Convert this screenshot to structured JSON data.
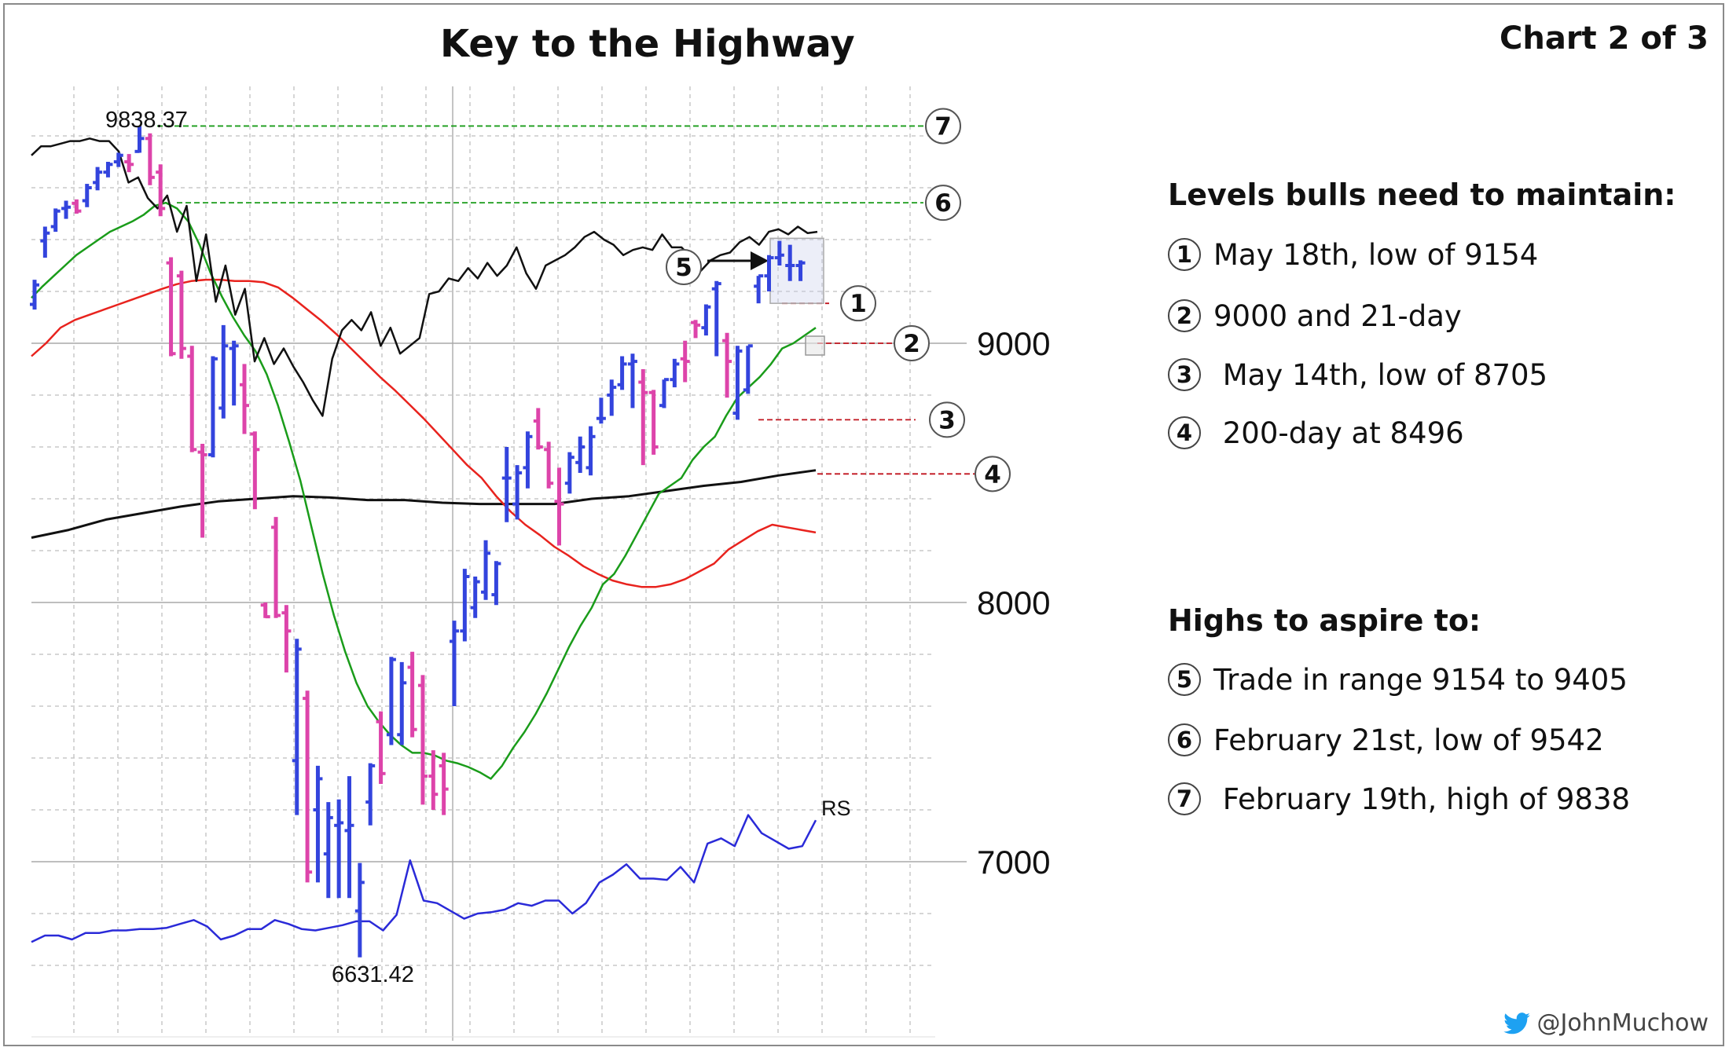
{
  "title": "Key to the Highway",
  "chart_label": "Chart 2 of 3",
  "handle": "@JohnMuchow",
  "colors": {
    "up_bar": "#3344dd",
    "down_bar": "#dd44aa",
    "ma21": "#1a9c1a",
    "ma50": "#e8231e",
    "ma200": "#111111",
    "rs": "#2a2ad8",
    "level_green": "#1a9c1a",
    "level_red": "#c0141e",
    "twitter": "#1da1f2"
  },
  "panel": {
    "bull_levels_heading": "Levels bulls need to maintain:",
    "bull_levels": [
      {
        "num": "1",
        "text": "May 18th, low of 9154"
      },
      {
        "num": "2",
        "text": "9000 and 21-day"
      },
      {
        "num": "3",
        "text": " May 14th, low of 8705"
      },
      {
        "num": "4",
        "text": " 200-day at 8496"
      }
    ],
    "highs_heading": "Highs to aspire to:",
    "highs": [
      {
        "num": "5",
        "text": "Trade in range 9154 to 9405"
      },
      {
        "num": "6",
        "text": "February 21st, low of 9542"
      },
      {
        "num": "7",
        "text": " February 19th, high of 9838"
      }
    ]
  },
  "chart_data": {
    "type": "ohlc",
    "y_axis_ticks": [
      9000,
      8000,
      7000
    ],
    "ylim": [
      6450,
      9950
    ],
    "annotations": {
      "high_label": "9838.37",
      "low_label": "6631.42",
      "rs_label": "RS"
    },
    "levels": [
      {
        "num": "7",
        "value": 9838,
        "style": "green"
      },
      {
        "num": "6",
        "value": 9542,
        "style": "green"
      },
      {
        "num": "1",
        "value": 9154,
        "style": "red"
      },
      {
        "num": "2",
        "value": 9000,
        "style": "red"
      },
      {
        "num": "3",
        "value": 8705,
        "style": "red"
      },
      {
        "num": "4",
        "value": 8496,
        "style": "red"
      }
    ],
    "range_box": {
      "num": "5",
      "low": 9154,
      "high": 9405
    },
    "bars": [
      {
        "o": 9150,
        "h": 9245,
        "l": 9130,
        "c": 9225
      },
      {
        "o": 9395,
        "h": 9450,
        "l": 9330,
        "c": 9425
      },
      {
        "o": 9450,
        "h": 9520,
        "l": 9430,
        "c": 9510
      },
      {
        "o": 9520,
        "h": 9550,
        "l": 9480,
        "c": 9525
      },
      {
        "o": 9540,
        "h": 9555,
        "l": 9500,
        "c": 9510
      },
      {
        "o": 9550,
        "h": 9615,
        "l": 9525,
        "c": 9600
      },
      {
        "o": 9620,
        "h": 9680,
        "l": 9590,
        "c": 9660
      },
      {
        "o": 9660,
        "h": 9700,
        "l": 9640,
        "c": 9690
      },
      {
        "o": 9700,
        "h": 9735,
        "l": 9680,
        "c": 9725
      },
      {
        "o": 9700,
        "h": 9730,
        "l": 9660,
        "c": 9690
      },
      {
        "o": 9740,
        "h": 9838,
        "l": 9735,
        "c": 9790
      },
      {
        "o": 9790,
        "h": 9810,
        "l": 9610,
        "c": 9640
      },
      {
        "o": 9660,
        "h": 9690,
        "l": 9490,
        "c": 9520
      },
      {
        "o": 9310,
        "h": 9332,
        "l": 8950,
        "c": 8960
      },
      {
        "o": 9260,
        "h": 9280,
        "l": 8940,
        "c": 8980
      },
      {
        "o": 8950,
        "h": 8990,
        "l": 8580,
        "c": 8590
      },
      {
        "o": 8580,
        "h": 8612,
        "l": 8250,
        "c": 8570
      },
      {
        "o": 8570,
        "h": 8950,
        "l": 8560,
        "c": 8940
      },
      {
        "o": 8750,
        "h": 9070,
        "l": 8710,
        "c": 8990
      },
      {
        "o": 8980,
        "h": 9010,
        "l": 8760,
        "c": 8990
      },
      {
        "o": 8840,
        "h": 8920,
        "l": 8650,
        "c": 8760
      },
      {
        "o": 8650,
        "h": 8660,
        "l": 8360,
        "c": 8590
      },
      {
        "o": 7990,
        "h": 8000,
        "l": 7940,
        "c": 7945
      },
      {
        "o": 8290,
        "h": 8330,
        "l": 7940,
        "c": 7950
      },
      {
        "o": 7960,
        "h": 7990,
        "l": 7730,
        "c": 7890
      },
      {
        "o": 7390,
        "h": 7860,
        "l": 7180,
        "c": 7820
      },
      {
        "o": 7630,
        "h": 7660,
        "l": 6920,
        "c": 6960
      },
      {
        "o": 7200,
        "h": 7370,
        "l": 6920,
        "c": 7320
      },
      {
        "o": 7030,
        "h": 7230,
        "l": 6860,
        "c": 7170
      },
      {
        "o": 7140,
        "h": 7240,
        "l": 6860,
        "c": 7150
      },
      {
        "o": 7120,
        "h": 7330,
        "l": 6860,
        "c": 7140
      },
      {
        "o": 6810,
        "h": 6995,
        "l": 6631,
        "c": 6920
      },
      {
        "o": 7230,
        "h": 7380,
        "l": 7140,
        "c": 7370
      },
      {
        "o": 7540,
        "h": 7580,
        "l": 7300,
        "c": 7340
      },
      {
        "o": 7490,
        "h": 7790,
        "l": 7450,
        "c": 7780
      },
      {
        "o": 7490,
        "h": 7770,
        "l": 7450,
        "c": 7690
      },
      {
        "o": 7750,
        "h": 7810,
        "l": 7480,
        "c": 7510
      },
      {
        "o": 7680,
        "h": 7720,
        "l": 7220,
        "c": 7330
      },
      {
        "o": 7330,
        "h": 7430,
        "l": 7200,
        "c": 7260
      },
      {
        "o": 7370,
        "h": 7420,
        "l": 7180,
        "c": 7280
      },
      {
        "o": 7850,
        "h": 7930,
        "l": 7600,
        "c": 7890
      },
      {
        "o": 7890,
        "h": 8130,
        "l": 7850,
        "c": 8100
      },
      {
        "o": 7980,
        "h": 8100,
        "l": 7940,
        "c": 8080
      },
      {
        "o": 8040,
        "h": 8240,
        "l": 8010,
        "c": 8190
      },
      {
        "o": 8030,
        "h": 8160,
        "l": 7990,
        "c": 8150
      },
      {
        "o": 8480,
        "h": 8600,
        "l": 8310,
        "c": 8480
      },
      {
        "o": 8380,
        "h": 8530,
        "l": 8320,
        "c": 8500
      },
      {
        "o": 8520,
        "h": 8660,
        "l": 8440,
        "c": 8640
      },
      {
        "o": 8700,
        "h": 8750,
        "l": 8590,
        "c": 8600
      },
      {
        "o": 8590,
        "h": 8620,
        "l": 8440,
        "c": 8460
      },
      {
        "o": 8390,
        "h": 8520,
        "l": 8220,
        "c": 8380
      },
      {
        "o": 8460,
        "h": 8580,
        "l": 8420,
        "c": 8560
      },
      {
        "o": 8540,
        "h": 8640,
        "l": 8500,
        "c": 8600
      },
      {
        "o": 8520,
        "h": 8680,
        "l": 8490,
        "c": 8640
      },
      {
        "o": 8710,
        "h": 8790,
        "l": 8690,
        "c": 8710
      },
      {
        "o": 8800,
        "h": 8860,
        "l": 8720,
        "c": 8830
      },
      {
        "o": 8840,
        "h": 8950,
        "l": 8820,
        "c": 8920
      },
      {
        "o": 8920,
        "h": 8960,
        "l": 8750,
        "c": 8930
      },
      {
        "o": 8850,
        "h": 8900,
        "l": 8530,
        "c": 8810
      },
      {
        "o": 8810,
        "h": 8820,
        "l": 8570,
        "c": 8600
      },
      {
        "o": 8760,
        "h": 8860,
        "l": 8750,
        "c": 8860
      },
      {
        "o": 8860,
        "h": 8940,
        "l": 8830,
        "c": 8920
      },
      {
        "o": 8940,
        "h": 9010,
        "l": 8850,
        "c": 8930
      },
      {
        "o": 9080,
        "h": 9090,
        "l": 9020,
        "c": 9070
      },
      {
        "o": 9060,
        "h": 9150,
        "l": 9030,
        "c": 9140
      },
      {
        "o": 9210,
        "h": 9240,
        "l": 8950,
        "c": 9230
      },
      {
        "o": 9010,
        "h": 9040,
        "l": 8790,
        "c": 8930
      },
      {
        "o": 8730,
        "h": 8990,
        "l": 8705,
        "c": 8970
      },
      {
        "o": 8820,
        "h": 8990,
        "l": 8805,
        "c": 8990
      },
      {
        "o": 9220,
        "h": 9260,
        "l": 9154,
        "c": 9260
      },
      {
        "o": 9260,
        "h": 9340,
        "l": 9200,
        "c": 9330
      },
      {
        "o": 9330,
        "h": 9395,
        "l": 9300,
        "c": 9340
      },
      {
        "o": 9300,
        "h": 9380,
        "l": 9240,
        "c": 9300
      },
      {
        "o": 9300,
        "h": 9320,
        "l": 9240,
        "c": 9310
      }
    ],
    "ma21": [
      9175,
      9220,
      9260,
      9300,
      9340,
      9370,
      9400,
      9430,
      9450,
      9470,
      9495,
      9530,
      9542,
      9520,
      9470,
      9380,
      9270,
      9180,
      9100,
      9030,
      8970,
      8880,
      8760,
      8620,
      8470,
      8290,
      8110,
      7950,
      7810,
      7690,
      7600,
      7540,
      7490,
      7450,
      7420,
      7420,
      7410,
      7390,
      7380,
      7365,
      7345,
      7320,
      7370,
      7440,
      7500,
      7570,
      7650,
      7740,
      7830,
      7910,
      7980,
      8070,
      8110,
      8180,
      8260,
      8340,
      8420,
      8450,
      8480,
      8550,
      8600,
      8640,
      8720,
      8790,
      8830,
      8870,
      8920,
      8980,
      9000,
      9030,
      9060
    ],
    "ma50": [
      8950,
      9000,
      9060,
      9090,
      9110,
      9130,
      9150,
      9170,
      9190,
      9210,
      9228,
      9240,
      9245,
      9245,
      9240,
      9240,
      9235,
      9215,
      9175,
      9130,
      9085,
      9035,
      8980,
      8925,
      8870,
      8820,
      8765,
      8710,
      8650,
      8590,
      8530,
      8480,
      8410,
      8350,
      8300,
      8260,
      8215,
      8180,
      8140,
      8110,
      8085,
      8070,
      8060,
      8060,
      8070,
      8090,
      8120,
      8150,
      8205,
      8240,
      8275,
      8300,
      8290,
      8280,
      8270
    ],
    "ma200": [
      8250,
      8280,
      8320,
      8345,
      8370,
      8390,
      8400,
      8410,
      8405,
      8395,
      8395,
      8385,
      8380,
      8380,
      8380,
      8400,
      8410,
      8430,
      8450,
      8465,
      8490,
      8510
    ],
    "price_overlay": [
      9725,
      9760,
      9760,
      9770,
      9780,
      9780,
      9790,
      9780,
      9780,
      9740,
      9620,
      9640,
      9560,
      9520,
      9570,
      9430,
      9530,
      9240,
      9420,
      9160,
      9300,
      9110,
      9210,
      8930,
      9020,
      8920,
      8980,
      8910,
      8850,
      8780,
      8720,
      8940,
      9050,
      9090,
      9050,
      9120,
      8990,
      9060,
      8960,
      8990,
      9020,
      9190,
      9200,
      9250,
      9240,
      9290,
      9250,
      9310,
      9260,
      9300,
      9370,
      9270,
      9210,
      9300,
      9320,
      9340,
      9370,
      9410,
      9430,
      9400,
      9380,
      9340,
      9360,
      9370,
      9360,
      9420,
      9370,
      9370,
      9330,
      9280,
      9320,
      9340,
      9350,
      9390,
      9410,
      9380,
      9430,
      9440,
      9420,
      9450,
      9425,
      9430
    ],
    "rs": [
      6690,
      6715,
      6715,
      6700,
      6725,
      6725,
      6735,
      6735,
      6740,
      6740,
      6745,
      6760,
      6775,
      6750,
      6700,
      6715,
      6740,
      6740,
      6775,
      6760,
      6740,
      6735,
      6745,
      6755,
      6770,
      6770,
      6735,
      6795,
      7005,
      6850,
      6840,
      6810,
      6780,
      6800,
      6805,
      6815,
      6840,
      6830,
      6850,
      6850,
      6800,
      6840,
      6920,
      6950,
      6990,
      6935,
      6935,
      6930,
      6980,
      6920,
      7070,
      7090,
      7060,
      7180,
      7110,
      7080,
      7050,
      7060,
      7160
    ]
  }
}
